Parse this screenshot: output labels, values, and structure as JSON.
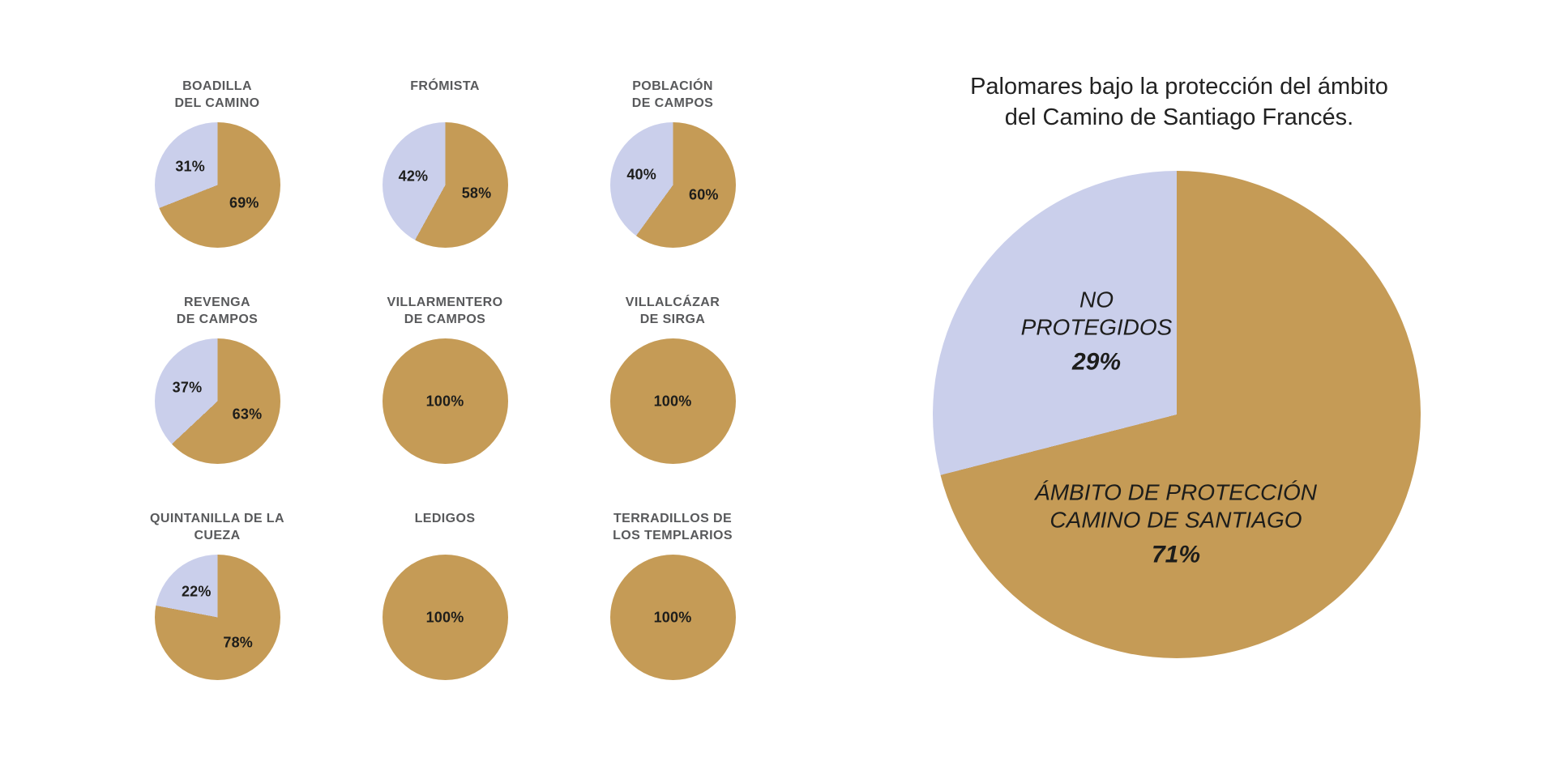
{
  "page": {
    "background": "#ffffff"
  },
  "colors": {
    "protegido": "#c59b56",
    "no_protegido": "#cacfeb",
    "title_gray": "#58595b",
    "text_dark": "#1d1d1b"
  },
  "chart_data": {
    "type": "pie",
    "title": "Palomares bajo la protección del ámbito del Camino de Santiago Francés.",
    "title_lines": [
      "Palomares bajo la protección del ámbito",
      "del Camino de Santiago Francés."
    ],
    "series_labels": {
      "protegido": "ÁMBITO DE PROTECCIÓN CAMINO DE SANTIAGO",
      "no_protegido": "NO PROTEGIDOS"
    },
    "legend_position": "in-slice labels",
    "units": "%",
    "small_multiples": [
      {
        "name": "BOADILLA DEL CAMINO",
        "name_lines": [
          "BOADILLA",
          "DEL CAMINO"
        ],
        "protegido": 69,
        "no_protegido": 31
      },
      {
        "name": "FRÓMISTA",
        "name_lines": [
          "FRÓMISTA"
        ],
        "protegido": 58,
        "no_protegido": 42
      },
      {
        "name": "POBLACIÓN DE CAMPOS",
        "name_lines": [
          "POBLACIÓN",
          "DE CAMPOS"
        ],
        "protegido": 60,
        "no_protegido": 40
      },
      {
        "name": "REVENGA DE CAMPOS",
        "name_lines": [
          "REVENGA",
          "DE CAMPOS"
        ],
        "protegido": 63,
        "no_protegido": 37
      },
      {
        "name": "VILLARMENTERO DE CAMPOS",
        "name_lines": [
          "VILLARMENTERO",
          "DE CAMPOS"
        ],
        "protegido": 100,
        "no_protegido": 0
      },
      {
        "name": "VILLALCÁZAR DE SIRGA",
        "name_lines": [
          "VILLALCÁZAR",
          "DE SIRGA"
        ],
        "protegido": 100,
        "no_protegido": 0
      },
      {
        "name": "QUINTANILLA DE LA CUEZA",
        "name_lines": [
          "QUINTANILLA DE LA",
          "CUEZA"
        ],
        "protegido": 78,
        "no_protegido": 22
      },
      {
        "name": "LEDIGOS",
        "name_lines": [
          "LEDIGOS"
        ],
        "protegido": 100,
        "no_protegido": 0
      },
      {
        "name": "TERRADILLOS DE LOS TEMPLARIOS",
        "name_lines": [
          "TERRADILLOS DE",
          "LOS TEMPLARIOS"
        ],
        "protegido": 100,
        "no_protegido": 0
      }
    ],
    "main_pie": {
      "slices": [
        {
          "key": "protegido",
          "label_lines": [
            "ÁMBITO DE PROTECCIÓN",
            "CAMINO DE SANTIAGO"
          ],
          "value": 71,
          "pct_text": "71%"
        },
        {
          "key": "no_protegido",
          "label_lines": [
            "NO",
            "PROTEGIDOS"
          ],
          "value": 29,
          "pct_text": "29%"
        }
      ]
    }
  }
}
